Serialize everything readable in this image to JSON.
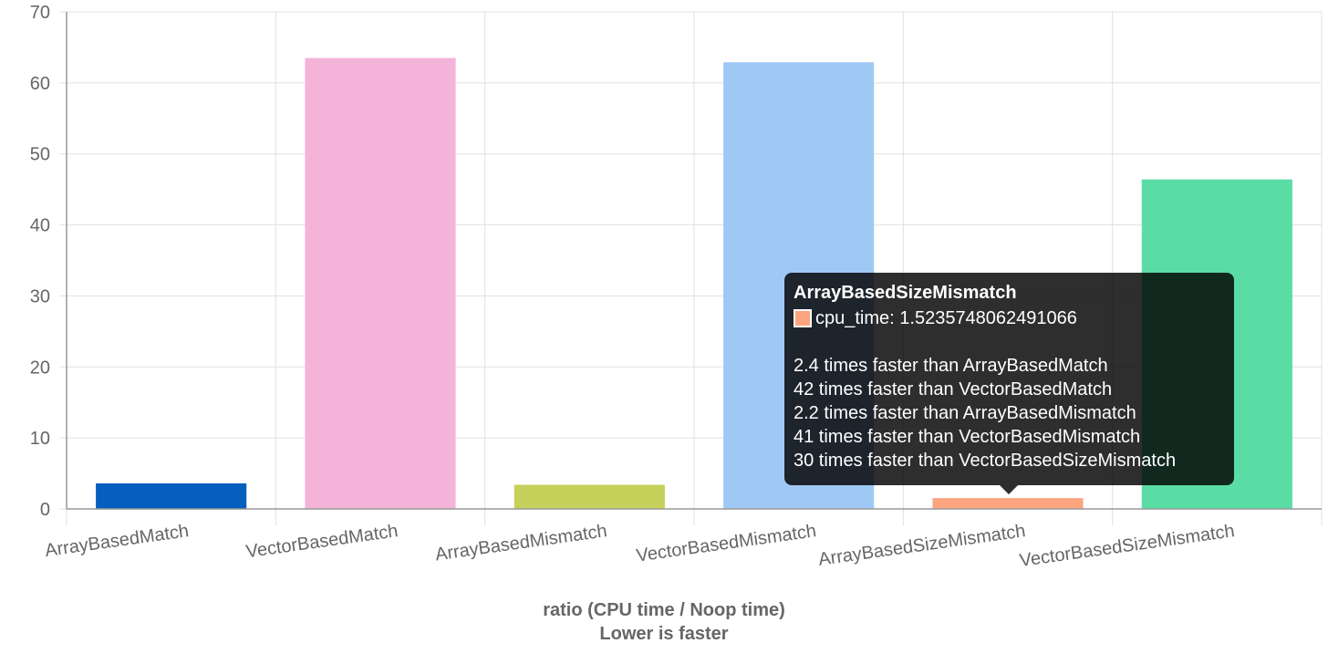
{
  "chart_data": {
    "type": "bar",
    "categories": [
      "ArrayBasedMatch",
      "VectorBasedMatch",
      "ArrayBasedMismatch",
      "VectorBasedMismatch",
      "ArrayBasedSizeMismatch",
      "VectorBasedSizeMismatch"
    ],
    "series": [
      {
        "name": "cpu_time",
        "values": [
          3.6,
          63.5,
          3.4,
          62.9,
          1.5235748062491066,
          46.4
        ]
      }
    ],
    "colors": [
      "#065FBE",
      "#F4B4DA",
      "#C5D15A",
      "#A0C8F4",
      "#FCA47E",
      "#5ADDA5"
    ],
    "ylim": [
      0,
      70
    ],
    "yticks": [
      "0",
      "10",
      "20",
      "30",
      "40",
      "50",
      "60",
      "70"
    ],
    "xlabel": [
      "ratio (CPU time / Noop time)",
      "Lower is faster"
    ],
    "ylabel": "",
    "grid": true
  },
  "tooltip": {
    "title": "ArrayBasedSizeMismatch",
    "label": "cpu_time: 1.5235748062491066",
    "swatch_color": "#FCA47E",
    "footer": [
      "2.4 times faster than ArrayBasedMatch",
      "42 times faster than VectorBasedMatch",
      "2.2 times faster than ArrayBasedMismatch",
      "41 times faster than VectorBasedMismatch",
      "30 times faster than VectorBasedSizeMismatch"
    ]
  }
}
